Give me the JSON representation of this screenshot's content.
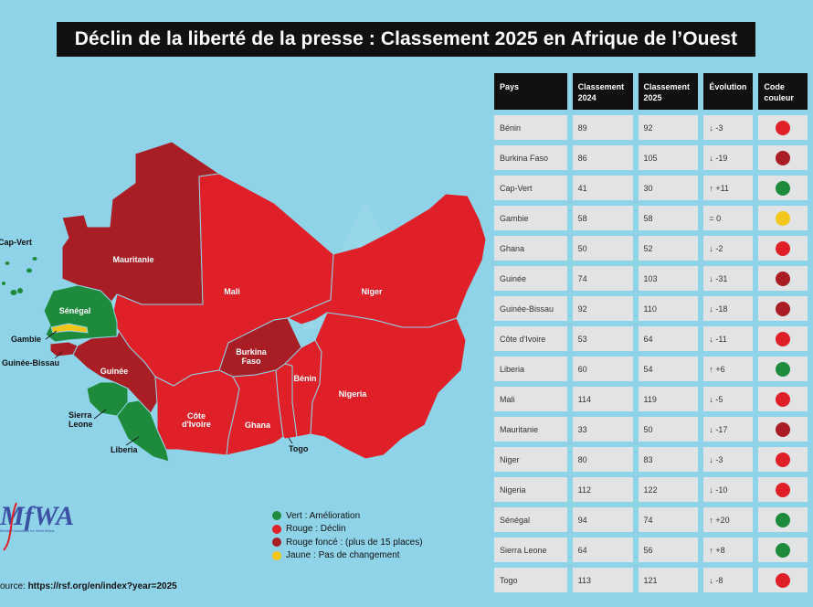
{
  "title": "Déclin de la liberté de la presse : Classement 2025 en Afrique de l’Ouest",
  "colors": {
    "background": "#8fd3e8",
    "vert": "#1e8a3c",
    "rouge": "#e02028",
    "rouge_fonce": "#a81e24",
    "jaune": "#f2c61a"
  },
  "table": {
    "headers": [
      "Pays",
      "Classement 2024",
      "Classement 2025",
      "Évolution",
      "Code couleur"
    ],
    "rows": [
      {
        "pays": "Bénin",
        "y2024": "89",
        "y2025": "92",
        "evolution": "↓ -3",
        "code": "rouge"
      },
      {
        "pays": "Burkina Faso",
        "y2024": "86",
        "y2025": "105",
        "evolution": "↓ -19",
        "code": "rouge_fonce"
      },
      {
        "pays": "Cap-Vert",
        "y2024": "41",
        "y2025": "30",
        "evolution": "↑ +11",
        "code": "vert"
      },
      {
        "pays": "Gambie",
        "y2024": "58",
        "y2025": "58",
        "evolution": "= 0",
        "code": "jaune"
      },
      {
        "pays": "Ghana",
        "y2024": "50",
        "y2025": "52",
        "evolution": "↓ -2",
        "code": "rouge"
      },
      {
        "pays": "Guinée",
        "y2024": "74",
        "y2025": "103",
        "evolution": "↓ -31",
        "code": "rouge_fonce"
      },
      {
        "pays": "Guinée-Bissau",
        "y2024": "92",
        "y2025": "110",
        "evolution": "↓ -18",
        "code": "rouge_fonce"
      },
      {
        "pays": "Côte d'Ivoire",
        "y2024": "53",
        "y2025": "64",
        "evolution": "↓ -11",
        "code": "rouge"
      },
      {
        "pays": "Liberia",
        "y2024": "60",
        "y2025": "54",
        "evolution": "↑ +6",
        "code": "vert"
      },
      {
        "pays": "Mali",
        "y2024": "114",
        "y2025": "119",
        "evolution": "↓ -5",
        "code": "rouge"
      },
      {
        "pays": "Mauritanie",
        "y2024": "33",
        "y2025": "50",
        "evolution": "↓ -17",
        "code": "rouge_fonce"
      },
      {
        "pays": "Niger",
        "y2024": "80",
        "y2025": "83",
        "evolution": "↓ -3",
        "code": "rouge"
      },
      {
        "pays": "Nigeria",
        "y2024": "112",
        "y2025": "122",
        "evolution": "↓ -10",
        "code": "rouge"
      },
      {
        "pays": "Sénégal",
        "y2024": "94",
        "y2025": "74",
        "evolution": "↑ +20",
        "code": "vert"
      },
      {
        "pays": "Sierra Leone",
        "y2024": "64",
        "y2025": "56",
        "evolution": "↑ +8",
        "code": "vert"
      },
      {
        "pays": "Togo",
        "y2024": "113",
        "y2025": "121",
        "evolution": "↓ -8",
        "code": "rouge"
      }
    ]
  },
  "map_labels": {
    "cap_vert": "Cap-Vert",
    "mauritanie": "Mauritanie",
    "mali": "Mali",
    "niger": "Niger",
    "senegal": "Sénégal",
    "gambie": "Gambie",
    "guinee_bissau": "Guinée-Bissau",
    "guinee": "Guinée",
    "burkina_1": "Burkina",
    "burkina_2": "Faso",
    "benin": "Bénin",
    "nigeria": "Nigeria",
    "sierra_1": "Sierra",
    "sierra_2": "Leone",
    "liberia": "Liberia",
    "civ_1": "Côte",
    "civ_2": "d'Ivoire",
    "ghana": "Ghana",
    "togo": "Togo"
  },
  "legend": [
    {
      "label": "Vert : Amélioration",
      "code": "vert"
    },
    {
      "label": "Rouge : Déclin",
      "code": "rouge"
    },
    {
      "label": "Rouge foncé : (plus de 15 places)",
      "code": "rouge_fonce"
    },
    {
      "label": "Jaune : Pas de changement",
      "code": "jaune"
    }
  ],
  "source": {
    "prefix": "ource:",
    "url": "https://rsf.org/en/index?year=2025"
  },
  "logo": {
    "letters": "MFWA",
    "caption": "Media Foundation for West Africa"
  }
}
